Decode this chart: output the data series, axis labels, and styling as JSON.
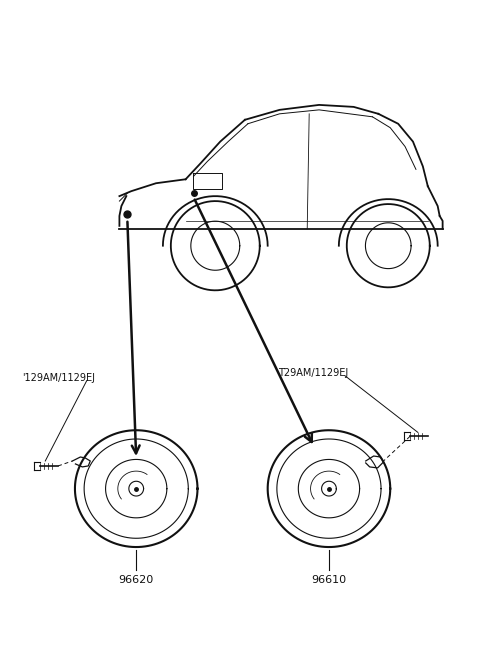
{
  "bg_color": "#ffffff",
  "line_color": "#111111",
  "fig_width": 4.8,
  "fig_height": 6.57,
  "dpi": 100,
  "part_labels": [
    "96620",
    "96610"
  ],
  "bolt_label_left": "'129AM/1129EJ",
  "bolt_label_right": "T29AM/1129EJ"
}
